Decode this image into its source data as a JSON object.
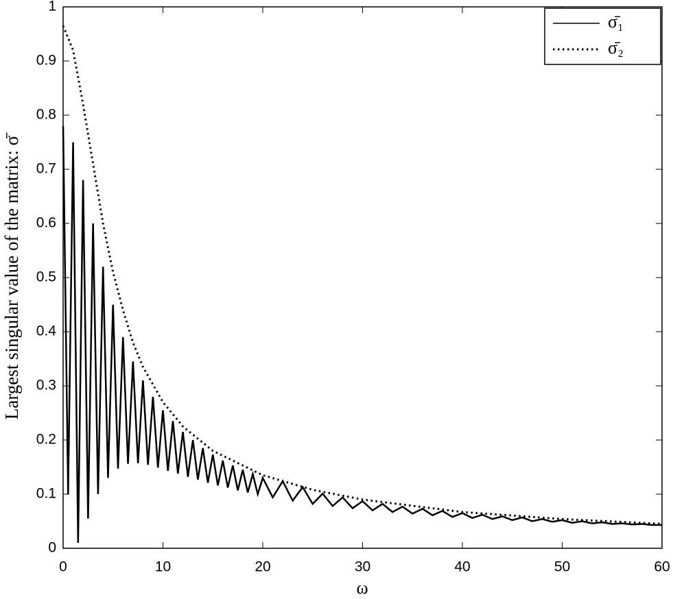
{
  "chart_data": {
    "type": "line",
    "xlabel": "ω",
    "ylabel": "Largest singular value of the matrix: σ̄",
    "xlim": [
      0,
      60
    ],
    "ylim": [
      0,
      1
    ],
    "xticks": [
      0,
      10,
      20,
      30,
      40,
      50,
      60
    ],
    "yticks": [
      0,
      0.1,
      0.2,
      0.3,
      0.4,
      0.5,
      0.6,
      0.7,
      0.8,
      0.9,
      1
    ],
    "grid": false,
    "legend": "upper right",
    "series": [
      {
        "name": "σ̄₁",
        "color": "#000000",
        "style": "solid",
        "x": [
          0,
          0.5,
          1,
          1.5,
          2,
          2.5,
          3,
          3.5,
          4,
          4.5,
          5,
          5.5,
          6,
          6.5,
          7,
          7.5,
          8,
          8.5,
          9,
          9.5,
          10,
          10.5,
          11,
          11.5,
          12,
          12.5,
          13,
          13.5,
          14,
          14.5,
          15,
          15.5,
          16,
          16.5,
          17,
          17.5,
          18,
          18.5,
          19,
          19.5,
          20,
          21,
          22,
          23,
          24,
          25,
          26,
          27,
          28,
          29,
          30,
          31,
          32,
          33,
          34,
          35,
          36,
          37,
          38,
          39,
          40,
          41,
          42,
          43,
          44,
          45,
          46,
          47,
          48,
          49,
          50,
          51,
          52,
          53,
          54,
          55,
          56,
          57,
          58,
          59,
          60
        ],
        "values": [
          0.78,
          0.1,
          0.75,
          0.01,
          0.68,
          0.055,
          0.6,
          0.1,
          0.52,
          0.13,
          0.45,
          0.147,
          0.39,
          0.156,
          0.345,
          0.157,
          0.31,
          0.154,
          0.28,
          0.149,
          0.255,
          0.143,
          0.235,
          0.138,
          0.215,
          0.132,
          0.2,
          0.127,
          0.185,
          0.121,
          0.173,
          0.116,
          0.162,
          0.112,
          0.153,
          0.107,
          0.145,
          0.103,
          0.137,
          0.1,
          0.13,
          0.094,
          0.124,
          0.088,
          0.113,
          0.082,
          0.101,
          0.078,
          0.094,
          0.074,
          0.087,
          0.07,
          0.082,
          0.067,
          0.077,
          0.064,
          0.073,
          0.061,
          0.069,
          0.058,
          0.065,
          0.056,
          0.062,
          0.054,
          0.059,
          0.052,
          0.057,
          0.05,
          0.054,
          0.049,
          0.052,
          0.047,
          0.05,
          0.046,
          0.048,
          0.045,
          0.046,
          0.044,
          0.045,
          0.043,
          0.043
        ]
      },
      {
        "name": "σ̄₂",
        "color": "#000000",
        "style": "dotted",
        "x": [
          0,
          1,
          2,
          3,
          4,
          5,
          6,
          7,
          8,
          10,
          12,
          15,
          20,
          25,
          30,
          40,
          50,
          60
        ],
        "values": [
          0.965,
          0.92,
          0.82,
          0.71,
          0.6,
          0.51,
          0.44,
          0.38,
          0.335,
          0.27,
          0.225,
          0.18,
          0.135,
          0.108,
          0.09,
          0.067,
          0.054,
          0.045
        ]
      }
    ]
  }
}
